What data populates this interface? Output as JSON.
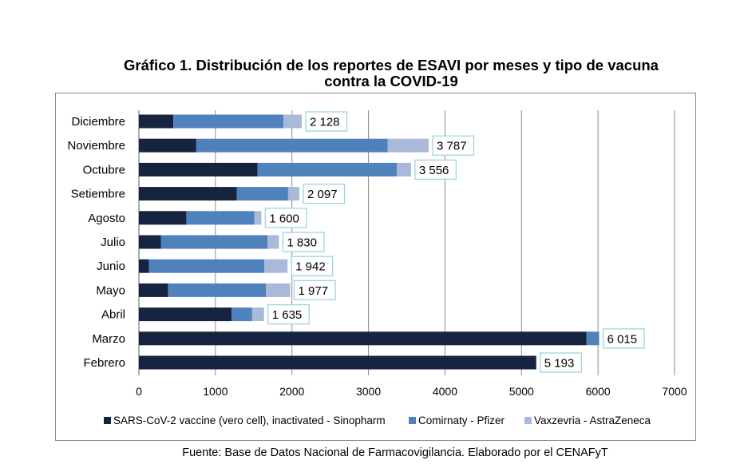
{
  "title_line1": "Gráfico 1. Distribución de los reportes de ESAVI por meses y tipo de vacuna",
  "title_line2": "contra la COVID-19",
  "source": "Fuente: Base de Datos Nacional de Farmacovigilancia. Elaborado por el CENAFyT",
  "chart_data": {
    "type": "bar",
    "orientation": "horizontal",
    "stacked": true,
    "categories": [
      "Diciembre",
      "Noviembre",
      "Octubre",
      "Setiembre",
      "Agosto",
      "Julio",
      "Junio",
      "Mayo",
      "Abril",
      "Marzo",
      "Febrero"
    ],
    "totals": [
      "2 128",
      "3 787",
      "3 556",
      "2 097",
      "1 600",
      "1 830",
      "1 942",
      "1 977",
      "1 635",
      "6 015",
      "5 193"
    ],
    "series": [
      {
        "name": "SARS-CoV-2 vaccine (vero cell), inactivated - Sinopharm",
        "color": "#17243f",
        "values": [
          450,
          750,
          1550,
          1280,
          620,
          290,
          130,
          380,
          1210,
          5850,
          5193
        ]
      },
      {
        "name": "Comirnaty - Pfizer",
        "color": "#4f81bd",
        "values": [
          1440,
          2500,
          1820,
          670,
          890,
          1390,
          1510,
          1280,
          270,
          165,
          0
        ]
      },
      {
        "name": "Vaxzevria - AstraZeneca",
        "color": "#a8b9d9",
        "values": [
          238,
          537,
          186,
          147,
          90,
          150,
          302,
          317,
          155,
          0,
          0
        ]
      }
    ],
    "xlim": [
      0,
      7000
    ],
    "xticks": [
      0,
      1000,
      2000,
      3000,
      4000,
      5000,
      6000,
      7000
    ],
    "grid": true,
    "legend_position": "bottom",
    "data_label_border_color": "#9fd3dc"
  }
}
